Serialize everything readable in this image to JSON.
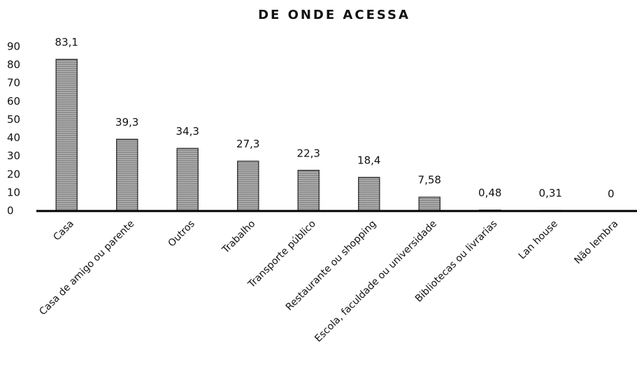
{
  "chart_data": {
    "type": "bar",
    "title": "DE ONDE ACESSA",
    "categories": [
      "Casa",
      "Casa de amigo ou parente",
      "Outros",
      "Trabalho",
      "Transporte público",
      "Restaurante ou shopping",
      "Escola, faculdade ou universidade",
      "Bibliotecas ou livrarias",
      "Lan house",
      "Não lembra"
    ],
    "values": [
      83.1,
      39.3,
      34.3,
      27.3,
      22.3,
      18.4,
      7.58,
      0.48,
      0.31,
      0
    ],
    "value_labels": [
      "83,1",
      "39,3",
      "34,3",
      "27,3",
      "22,3",
      "18,4",
      "7,58",
      "0,48",
      "0,31",
      "0"
    ],
    "color": "#8f8f8f",
    "ylim": [
      0,
      90
    ],
    "yticks": [
      0,
      10,
      20,
      30,
      40,
      50,
      60,
      70,
      80,
      90
    ],
    "grid": false
  }
}
